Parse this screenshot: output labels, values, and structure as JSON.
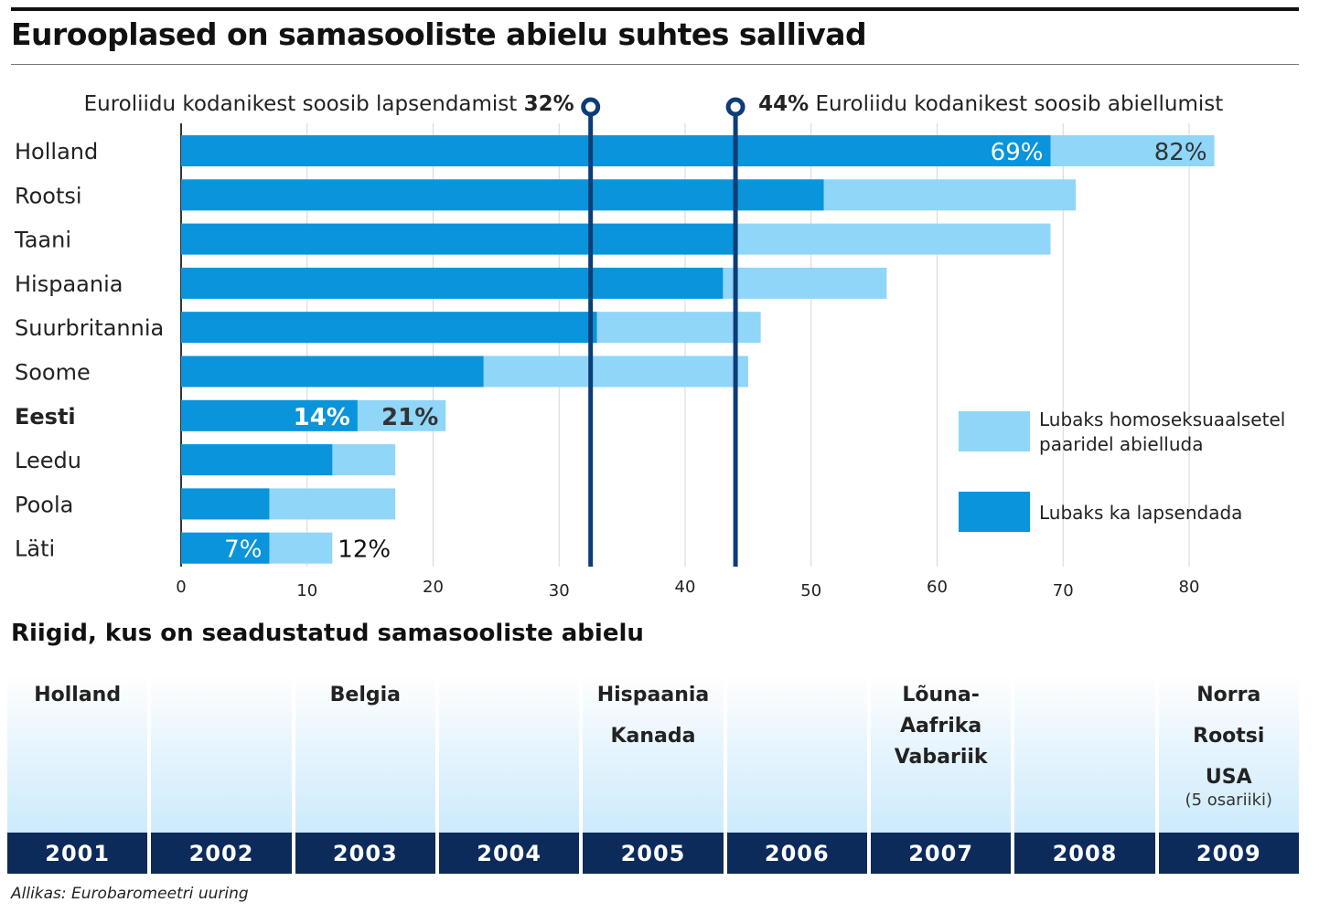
{
  "title": "Eurooplased on samasooliste abielu suhtes sallivad",
  "colors": {
    "marriage": "#8fd6f8",
    "adoption": "#0a94db",
    "reference_line": "#0c3d78",
    "timeline_year_bg": "#0c2b5a",
    "text": "#1a1a1a"
  },
  "chart_data": {
    "type": "bar",
    "orientation": "horizontal",
    "categories": [
      "Holland",
      "Rootsi",
      "Taani",
      "Hispaania",
      "Suurbritannia",
      "Soome",
      "Eesti",
      "Leedu",
      "Poola",
      "Läti"
    ],
    "highlighted_category": "Eesti",
    "series": [
      {
        "name": "Lubaks homoseksuaalsetel paaridel abielluda",
        "key": "marriage",
        "values": [
          82,
          71,
          69,
          56,
          46,
          45,
          21,
          17,
          17,
          12
        ]
      },
      {
        "name": "Lubaks ka lapsendada",
        "key": "adoption",
        "values": [
          69,
          51,
          44,
          43,
          33,
          24,
          14,
          12,
          7,
          7
        ]
      }
    ],
    "value_labels": [
      {
        "category": "Holland",
        "series": "adoption",
        "text": "69%"
      },
      {
        "category": "Holland",
        "series": "marriage",
        "text": "82%"
      },
      {
        "category": "Eesti",
        "series": "adoption",
        "text": "14%"
      },
      {
        "category": "Eesti",
        "series": "marriage",
        "text": "21%"
      },
      {
        "category": "Läti",
        "series": "adoption",
        "text": "7%"
      },
      {
        "category": "Läti",
        "series": "marriage",
        "text": "12%"
      }
    ],
    "xlim": [
      0,
      80
    ],
    "xticks": [
      0,
      10,
      20,
      30,
      40,
      50,
      60,
      70,
      80
    ],
    "reference_lines": [
      {
        "value": 32.5,
        "text": "Euroliidu kodanikest soosib lapsendamist",
        "value_text": "32%",
        "text_side": "left"
      },
      {
        "value": 44,
        "text": "Euroliidu kodanikest soosib abiellumist",
        "value_text": "44%",
        "text_side": "right"
      }
    ],
    "legend": {
      "placement": "right",
      "items": [
        {
          "key": "marriage",
          "label_lines": [
            "Lubaks homoseksuaalsetel",
            "paaridel abielluda"
          ]
        },
        {
          "key": "adoption",
          "label_lines": [
            "Lubaks ka lapsendada"
          ]
        }
      ]
    },
    "grid": true,
    "grid_axis": "x"
  },
  "section_title": "Riigid, kus on seadustatud samasooliste abielu",
  "timeline": [
    {
      "year": "2001",
      "countries": [
        "Holland"
      ]
    },
    {
      "year": "2002",
      "countries": []
    },
    {
      "year": "2003",
      "countries": [
        "Belgia"
      ]
    },
    {
      "year": "2004",
      "countries": []
    },
    {
      "year": "2005",
      "countries": [
        "Hispaania",
        "Kanada"
      ]
    },
    {
      "year": "2006",
      "countries": []
    },
    {
      "year": "2007",
      "countries": [
        "Lõuna-\nAafrika\nVabariik"
      ]
    },
    {
      "year": "2008",
      "countries": []
    },
    {
      "year": "2009",
      "countries": [
        "Norra",
        "Rootsi",
        "USA"
      ],
      "note": "(5 osariiki)"
    }
  ],
  "source": "Allikas: Eurobaromeetri uuring"
}
